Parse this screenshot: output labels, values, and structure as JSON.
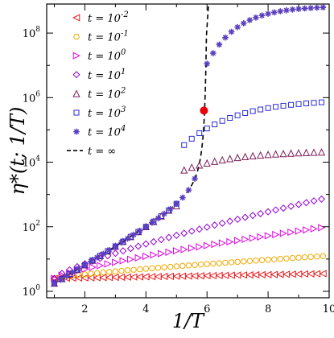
{
  "chart_data": {
    "type": "scatter",
    "xlabel": "1/T",
    "ylabel": "η*(t; 1/T)",
    "xlim": [
      0.75,
      10
    ],
    "ylim_log10": [
      -0.2,
      8.9
    ],
    "yscale": "log",
    "x_ticks": [
      2,
      4,
      6,
      8,
      10
    ],
    "y_ticks": [
      {
        "exp": 0,
        "label_base": "10",
        "label_exp": "0"
      },
      {
        "exp": 2,
        "label_base": "10",
        "label_exp": "2"
      },
      {
        "exp": 4,
        "label_base": "10",
        "label_exp": "4"
      },
      {
        "exp": 6,
        "label_base": "10",
        "label_exp": "6"
      },
      {
        "exp": 8,
        "label_base": "10",
        "label_exp": "8"
      }
    ],
    "grid": false,
    "legend_position": "top-left",
    "series": [
      {
        "name_prefix": "t = 10",
        "name_exp": "-2",
        "marker": "triangle-left",
        "color": "#e8191c",
        "x_start": 1.0,
        "x_end": 9.95,
        "x_step": 0.2,
        "log_start": 0.4,
        "log_end": 0.55,
        "curve": "linear"
      },
      {
        "name_prefix": "t = 10",
        "name_exp": "-1",
        "marker": "circle",
        "color": "#f2a900",
        "x_start": 1.0,
        "x_end": 9.95,
        "x_step": 0.2,
        "log_start": 0.4,
        "log_end": 1.1,
        "curve": "sqrt"
      },
      {
        "name_prefix": "t = 10",
        "name_exp": "0",
        "marker": "triangle-right",
        "color": "#e000e0",
        "x_start": 1.0,
        "x_end": 9.95,
        "x_step": 0.25,
        "log_start": 0.4,
        "log_end": 2.0,
        "curve": "sqrt"
      },
      {
        "name_prefix": "t = 10",
        "name_exp": "1",
        "marker": "diamond",
        "color": "#9400d3",
        "x_start": 1.0,
        "x_end": 9.95,
        "x_step": 0.25,
        "log_start": 0.4,
        "log_end": 2.9,
        "curve": "sqrt"
      },
      {
        "name_prefix": "t = 10",
        "name_exp": "2",
        "marker": "triangle-up",
        "color": "#7b1c5a",
        "x_start": 1.0,
        "x_end": 9.95,
        "x_step": 0.25,
        "log_start": 0.4,
        "log_end": 4.35,
        "curve": "mixed"
      },
      {
        "name_prefix": "t = 10",
        "name_exp": "3",
        "marker": "square",
        "color": "#2a2ad8",
        "x_start": 1.0,
        "x_end": 9.95,
        "x_step": 0.25,
        "log_start": 0.4,
        "log_end": 5.95,
        "curve": "mixed"
      },
      {
        "name_prefix": "t = 10",
        "name_exp": "4",
        "marker": "asterisk",
        "color": "#5a3fbf",
        "x_start": 1.0,
        "x_end": 9.95,
        "x_step": 0.2,
        "log_start": 0.4,
        "log_end": 8.8,
        "curve": "divergent"
      }
    ],
    "asymptote": {
      "name": "t = ∞",
      "style": "dashed",
      "color": "#000000",
      "x_start": 1.0,
      "x_end": 6.02,
      "x_divergence": 6.05
    },
    "highlight_point": {
      "x": 5.9,
      "log10_y": 5.6,
      "color": "#e8000a"
    }
  }
}
